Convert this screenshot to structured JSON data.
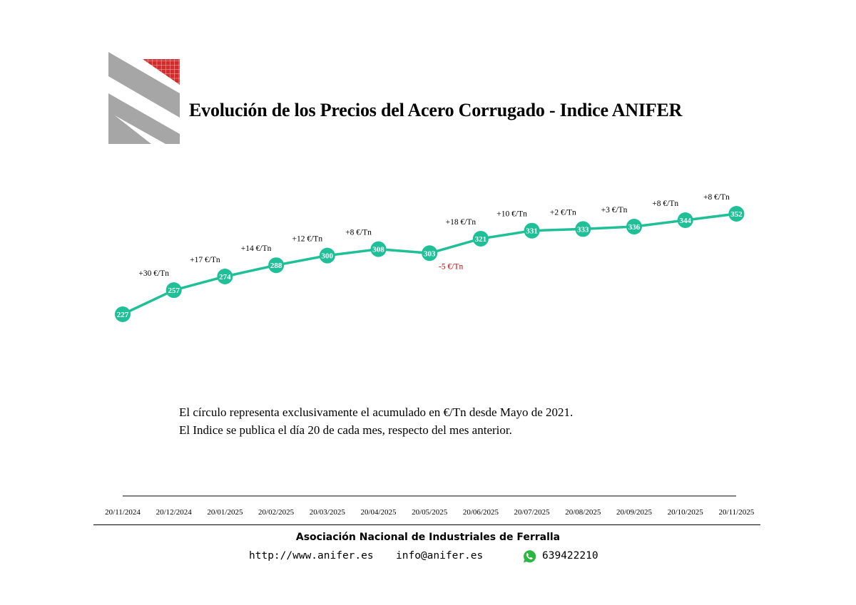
{
  "header": {
    "title": "Evolución de los Precios del Acero Corrugado - Indice ANIFER"
  },
  "chart_data": {
    "type": "line",
    "title": "Evolución de los Precios del Acero Corrugado - Indice ANIFER",
    "xlabel": "",
    "ylabel": "",
    "categories": [
      "20/11/2024",
      "20/12/2024",
      "20/01/2025",
      "20/02/2025",
      "20/03/2025",
      "20/04/2025",
      "20/05/2025",
      "20/06/2025",
      "20/07/2025",
      "20/08/2025",
      "20/09/2025",
      "20/10/2025",
      "20/11/2025"
    ],
    "series": [
      {
        "values": [
          227,
          257,
          274,
          288,
          300,
          308,
          303,
          321,
          331,
          333,
          336,
          344,
          352
        ],
        "annotations": [
          "",
          "+30 €/Tn",
          "+17 €/Tn",
          "+14 €/Tn",
          "+12 €/Tn",
          "+8 €/Tn",
          "-5 €/Tn",
          "+18 €/Tn",
          "+10 €/Tn",
          "+2 €/Tn",
          "+3 €/Tn",
          "+8 €/Tn",
          "+8 €/Tn"
        ]
      }
    ],
    "ylim": [
      200,
      380
    ],
    "grid": false,
    "legend": "none",
    "colors": {
      "line": "#1fbf98",
      "marker": "#1fbf98",
      "marker_text": "#ffffff",
      "increase_text": "#000000",
      "decrease_text": "#c00000",
      "axis": "#555555"
    }
  },
  "notes": [
    "El círculo representa exclusivamente el acumulado en €/Tn desde Mayo de 2021.",
    "El Indice se publica el día 20 de cada mes, respecto del mes anterior."
  ],
  "footer": {
    "organization": "Asociación Nacional de Industriales de Ferralla",
    "website": "http://www.anifer.es",
    "email": "info@anifer.es",
    "phone": "639422210",
    "phone_icon": "whatsapp-icon"
  },
  "logo": {
    "colors": {
      "gray": "#a6a6a6",
      "red": "#d22b2b"
    }
  }
}
